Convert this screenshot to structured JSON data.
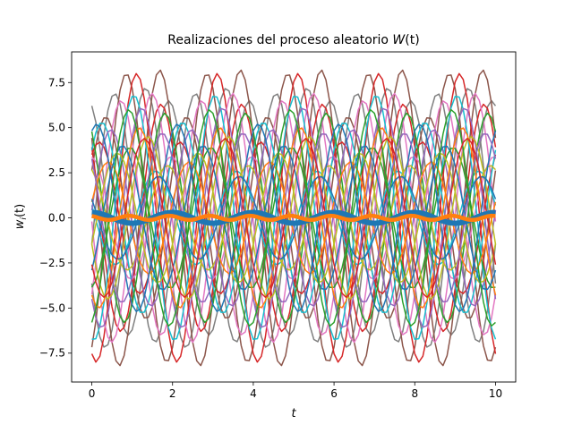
{
  "chart_data": {
    "type": "line",
    "title": "Realizaciones del proceso aleatorio W(t)",
    "title_parts": {
      "prefix": "Realizaciones del proceso aleatorio ",
      "var": "W",
      "arg": "(t)"
    },
    "xlabel": "t",
    "ylabel": "w_i(t)",
    "ylabel_parts": {
      "base": "w",
      "sub": "i",
      "arg": "(t)"
    },
    "xlim": [
      -0.5,
      10.5
    ],
    "ylim": [
      -9.1,
      9.2
    ],
    "xticks": [
      0,
      2,
      4,
      6,
      8,
      10
    ],
    "xtick_labels": [
      "0",
      "2",
      "4",
      "6",
      "8",
      "10"
    ],
    "yticks": [
      -7.5,
      -5.0,
      -2.5,
      0.0,
      2.5,
      5.0,
      7.5
    ],
    "ytick_labels": [
      "−7.5",
      "−5.0",
      "−2.5",
      "0.0",
      "2.5",
      "5.0",
      "7.5"
    ],
    "grid": false,
    "legend": "none",
    "sample_times": {
      "start": 0,
      "end": 10,
      "count": 101
    },
    "realization_model": "A*cos(2*pi*t/2 + phi)",
    "realizations": [
      {
        "amplitude": 6.5,
        "phase": 0.3,
        "color": "#7f7f7f"
      },
      {
        "amplitude": 7.2,
        "phase": 2.1,
        "color": "#7f7f7f"
      },
      {
        "amplitude": 6.9,
        "phase": 4.5,
        "color": "#7f7f7f"
      },
      {
        "amplitude": 8.2,
        "phase": 1.0,
        "color": "#8c564b"
      },
      {
        "amplitude": 8.0,
        "phase": 3.6,
        "color": "#8c564b"
      },
      {
        "amplitude": 5.6,
        "phase": 5.2,
        "color": "#8c564b"
      },
      {
        "amplitude": 8.0,
        "phase": 2.8,
        "color": "#d62728"
      },
      {
        "amplitude": 6.3,
        "phase": 0.9,
        "color": "#d62728"
      },
      {
        "amplitude": 4.2,
        "phase": 5.7,
        "color": "#d62728"
      },
      {
        "amplitude": 6.9,
        "phase": 1.6,
        "color": "#e377c2"
      },
      {
        "amplitude": 6.5,
        "phase": 4.0,
        "color": "#e377c2"
      },
      {
        "amplitude": 3.4,
        "phase": 0.1,
        "color": "#e377c2"
      },
      {
        "amplitude": 6.8,
        "phase": 3.0,
        "color": "#17becf"
      },
      {
        "amplitude": 5.3,
        "phase": 5.5,
        "color": "#17becf"
      },
      {
        "amplitude": 2.6,
        "phase": 1.3,
        "color": "#17becf"
      },
      {
        "amplitude": 6.1,
        "phase": 2.4,
        "color": "#9467bd"
      },
      {
        "amplitude": 4.9,
        "phase": 4.8,
        "color": "#9467bd"
      },
      {
        "amplitude": 5.8,
        "phase": 0.6,
        "color": "#2ca02c"
      },
      {
        "amplitude": 3.9,
        "phase": 3.3,
        "color": "#2ca02c"
      },
      {
        "amplitude": 4.5,
        "phase": 1.9,
        "color": "#bcbd22"
      },
      {
        "amplitude": 3.6,
        "phase": 4.3,
        "color": "#bcbd22"
      },
      {
        "amplitude": 2.9,
        "phase": 0.4,
        "color": "#bcbd22"
      },
      {
        "amplitude": 5.0,
        "phase": 2.6,
        "color": "#ff7f0e"
      },
      {
        "amplitude": 3.1,
        "phase": 5.0,
        "color": "#ff7f0e"
      },
      {
        "amplitude": 4.0,
        "phase": 3.9,
        "color": "#1f77b4"
      },
      {
        "amplitude": 2.3,
        "phase": 1.1,
        "color": "#1f77b4"
      },
      {
        "amplitude": 5.2,
        "phase": 5.9,
        "color": "#1f77b4"
      },
      {
        "amplitude": 4.7,
        "phase": 0.8,
        "color": "#9467bd"
      },
      {
        "amplitude": 6.0,
        "phase": 3.4,
        "color": "#2ca02c"
      },
      {
        "amplitude": 4.4,
        "phase": 2.2,
        "color": "#d62728"
      }
    ],
    "mean_curves": [
      {
        "name": "",
        "color": "#1f77b4",
        "amplitude": 0.3,
        "period": 2,
        "phase": 0.0,
        "stroke": "thick"
      },
      {
        "name": "",
        "color": "#ff7f0e",
        "amplitude": 0.12,
        "period": 1,
        "phase": 0.5,
        "stroke": "medium"
      }
    ]
  }
}
